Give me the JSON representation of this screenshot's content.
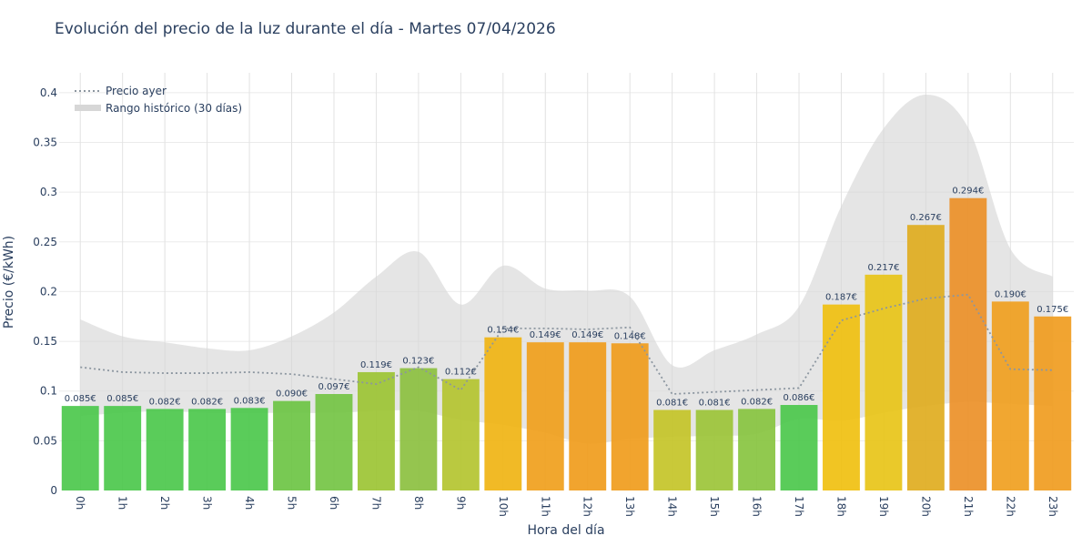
{
  "chart_data": {
    "type": "bar",
    "title": "Evolución del precio de la luz durante el día - Martes 07/04/2026",
    "xlabel": "Hora del día",
    "ylabel": "Precio (€/kWh)",
    "ylim": [
      0,
      0.42
    ],
    "yticks": [
      0,
      0.05,
      0.1,
      0.15,
      0.2,
      0.25,
      0.3,
      0.35,
      0.4
    ],
    "ytick_labels": [
      "0",
      "0.05",
      "0.1",
      "0.15",
      "0.2",
      "0.25",
      "0.3",
      "0.35",
      "0.4"
    ],
    "grid": true,
    "legend_position": "top-left",
    "categories": [
      "0h",
      "1h",
      "2h",
      "3h",
      "4h",
      "5h",
      "6h",
      "7h",
      "8h",
      "9h",
      "10h",
      "11h",
      "12h",
      "13h",
      "14h",
      "15h",
      "16h",
      "17h",
      "18h",
      "19h",
      "20h",
      "21h",
      "22h",
      "23h"
    ],
    "values": [
      0.085,
      0.085,
      0.082,
      0.082,
      0.083,
      0.09,
      0.097,
      0.119,
      0.123,
      0.112,
      0.154,
      0.149,
      0.149,
      0.148,
      0.081,
      0.081,
      0.082,
      0.086,
      0.187,
      0.217,
      0.267,
      0.294,
      0.19,
      0.175
    ],
    "value_labels": [
      "0.085€",
      "0.085€",
      "0.082€",
      "0.082€",
      "0.083€",
      "0.090€",
      "0.097€",
      "0.119€",
      "0.123€",
      "0.112€",
      "0.154€",
      "0.149€",
      "0.149€",
      "0.148€",
      "0.081€",
      "0.081€",
      "0.082€",
      "0.086€",
      "0.187€",
      "0.217€",
      "0.267€",
      "0.294€",
      "0.190€",
      "0.175€"
    ],
    "bar_colors": [
      "#4cc84c",
      "#4cc84c",
      "#4cc84c",
      "#4cc84c",
      "#4cc84c",
      "#6cc444",
      "#74c444",
      "#9cc434",
      "#8cc040",
      "#b4c430",
      "#f0b414",
      "#f0a01c",
      "#f09c1c",
      "#f09c1c",
      "#c4c428",
      "#9cc438",
      "#88c440",
      "#4cc84c",
      "#f0c010",
      "#e8c418",
      "#e0ac20",
      "#ec9028",
      "#f0a020",
      "#f09c20"
    ],
    "series": [
      {
        "name": "Precio ayer",
        "style": "dotted",
        "color": "#8c96a0",
        "values": [
          0.124,
          0.119,
          0.118,
          0.118,
          0.119,
          0.117,
          0.112,
          0.107,
          0.124,
          0.101,
          0.163,
          0.163,
          0.162,
          0.164,
          0.097,
          0.099,
          0.101,
          0.103,
          0.171,
          0.183,
          0.193,
          0.197,
          0.122,
          0.121
        ]
      },
      {
        "name": "Rango histórico (30 días)",
        "type": "area-range",
        "color": "#d7d7d7",
        "upper": [
          0.172,
          0.155,
          0.149,
          0.143,
          0.141,
          0.155,
          0.179,
          0.215,
          0.24,
          0.187,
          0.226,
          0.203,
          0.201,
          0.195,
          0.126,
          0.141,
          0.157,
          0.185,
          0.286,
          0.364,
          0.398,
          0.365,
          0.243,
          0.215
        ],
        "lower": [
          0.075,
          0.078,
          0.08,
          0.078,
          0.078,
          0.078,
          0.078,
          0.08,
          0.08,
          0.071,
          0.066,
          0.058,
          0.047,
          0.052,
          0.054,
          0.055,
          0.057,
          0.072,
          0.07,
          0.078,
          0.085,
          0.089,
          0.087,
          0.085
        ]
      }
    ]
  }
}
